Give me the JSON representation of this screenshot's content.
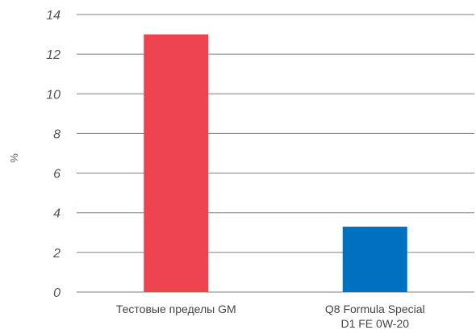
{
  "chart_data": {
    "type": "bar",
    "title": "",
    "xlabel": "",
    "ylabel": "%",
    "ylim": [
      0,
      14
    ],
    "yticks": [
      "0",
      "2",
      "4",
      "6",
      "8",
      "10",
      "12",
      "14"
    ],
    "grid": true,
    "categories": [
      [
        "Тестовые пределы GM"
      ],
      [
        "Q8 Formula Special",
        "D1 FE 0W-20"
      ]
    ],
    "values": [
      13.0,
      3.3
    ],
    "colors": [
      "#ee444f",
      "#0070c0"
    ]
  }
}
